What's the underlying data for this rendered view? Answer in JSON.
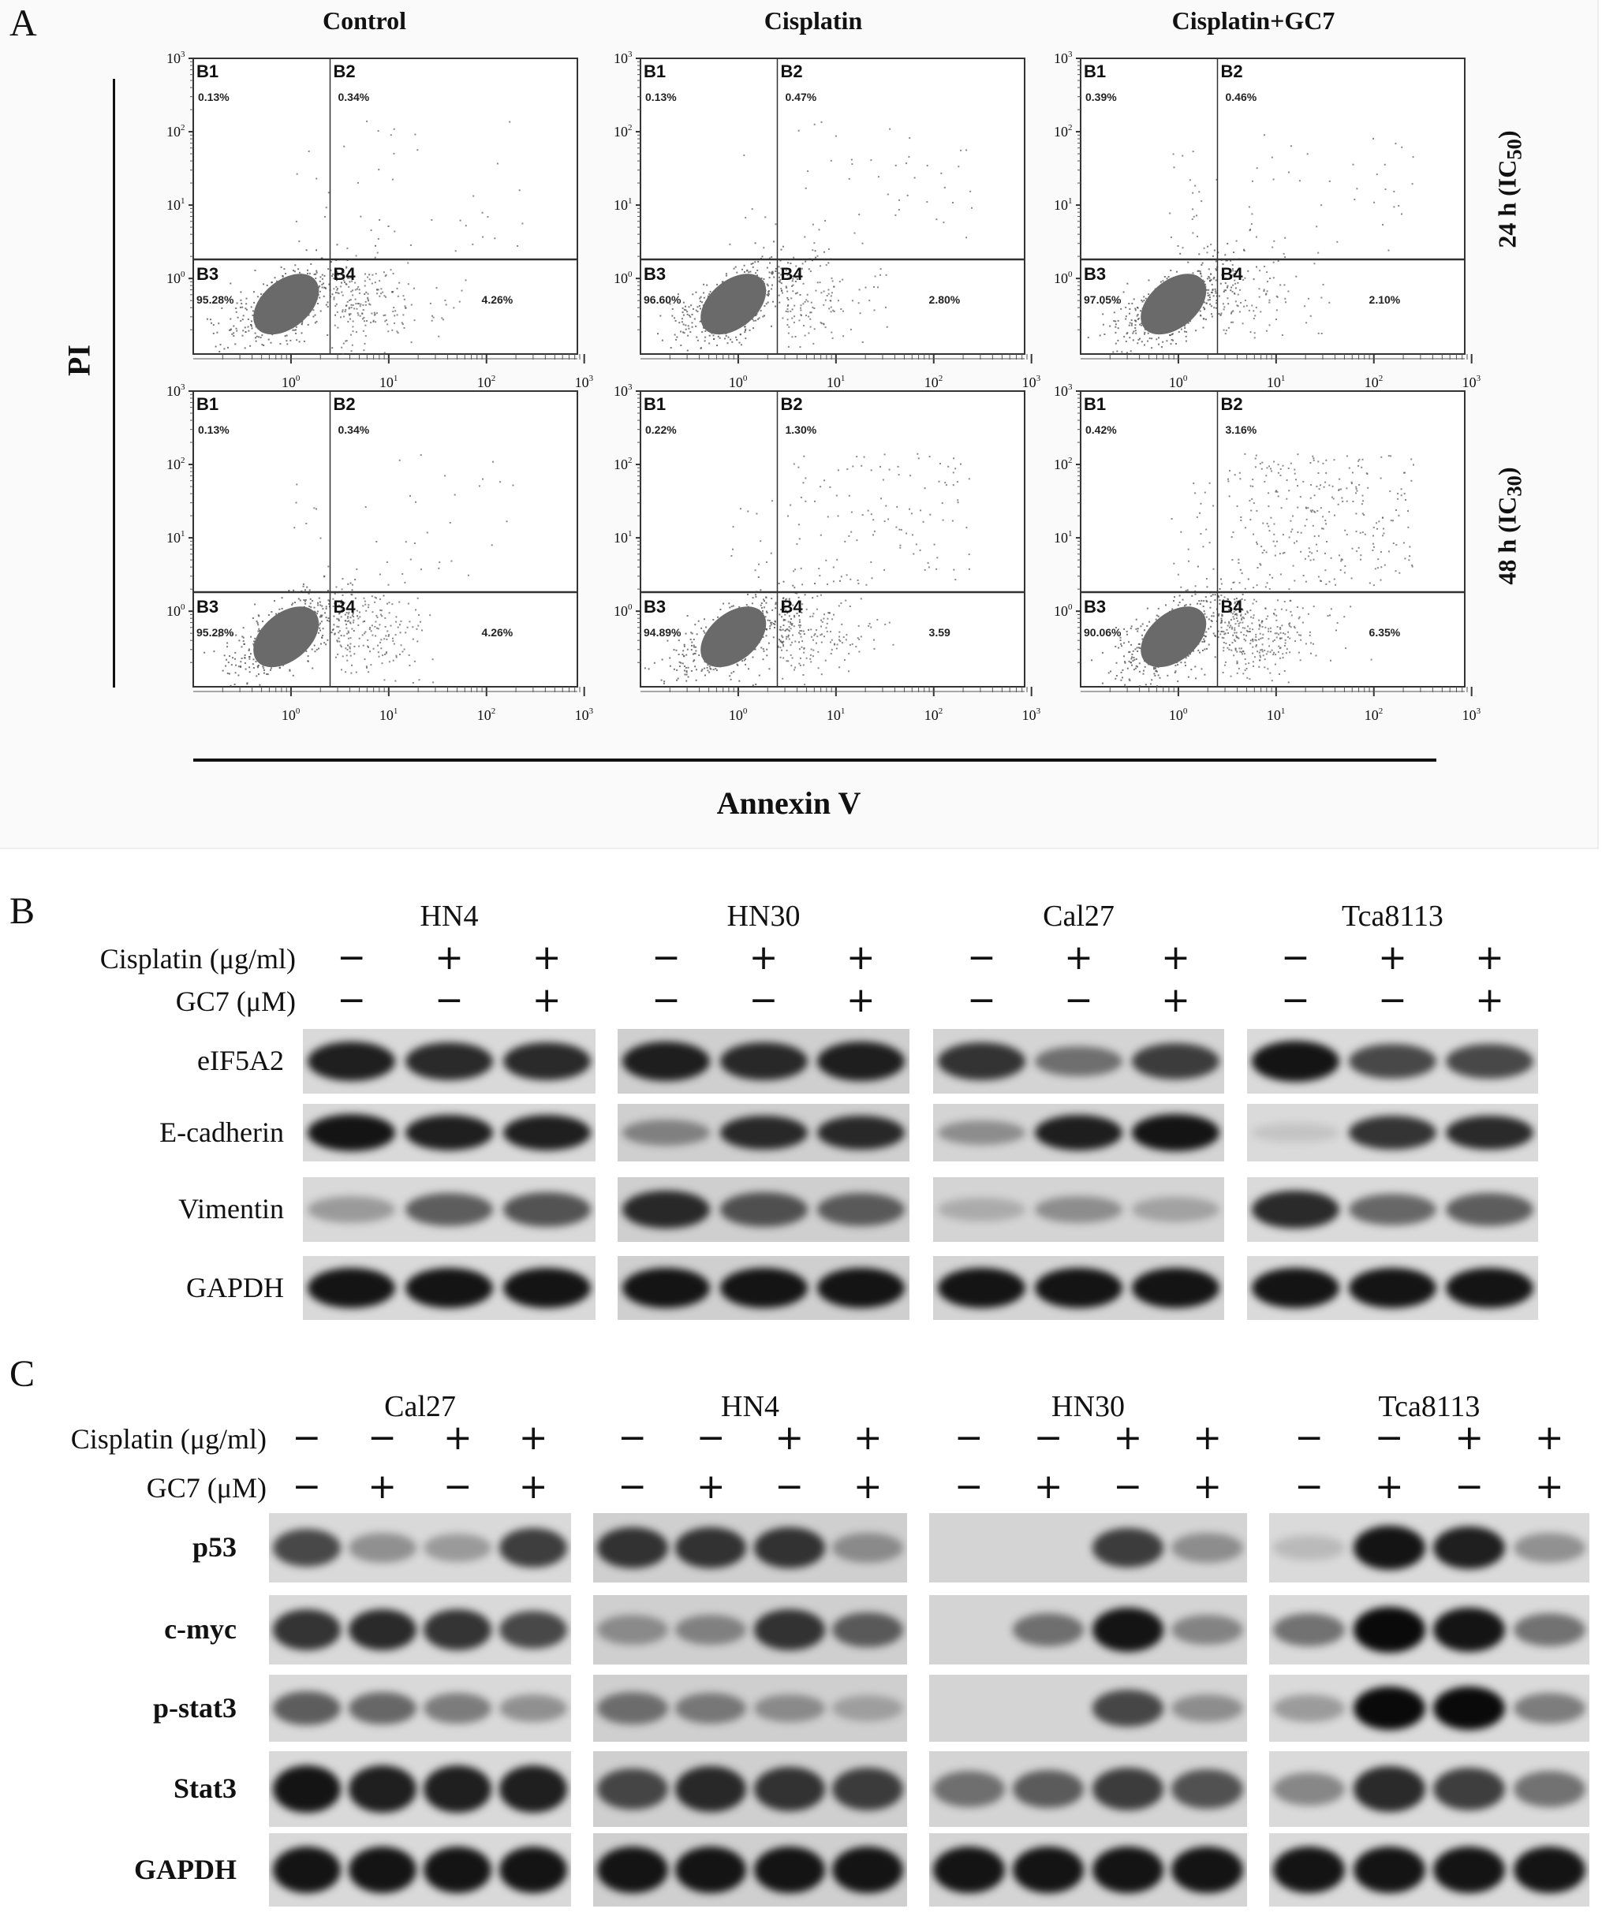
{
  "panel_a": {
    "letter": "A",
    "conditions": [
      "Control",
      "Cisplatin",
      "Cisplatin+GC7"
    ],
    "rows": [
      {
        "label": "24 h (IC",
        "sub": "50",
        "close": ")"
      },
      {
        "label": "48 h (IC",
        "sub": "30",
        "close": ")"
      }
    ],
    "y_axis_label": "PI",
    "x_axis_label": "Annexin V",
    "quadrant_names": [
      "B1",
      "B2",
      "B3",
      "B4"
    ],
    "tick_exponents": [
      "0",
      "1",
      "2",
      "3"
    ],
    "plots": [
      [
        {
          "B1": "0.13%",
          "B2": "0.34%",
          "B3": "95.28%",
          "B4": "4.26%"
        },
        {
          "B1": "0.13%",
          "B2": "0.47%",
          "B3": "96.60%",
          "B4": "2.80%"
        },
        {
          "B1": "0.39%",
          "B2": "0.46%",
          "B3": "97.05%",
          "B4": "2.10%"
        }
      ],
      [
        {
          "B1": "0.13%",
          "B2": "0.34%",
          "B3": "95.28%",
          "B4": "4.26%"
        },
        {
          "B1": "0.22%",
          "B2": "1.30%",
          "B3": "94.89%",
          "B4": "3.59"
        },
        {
          "B1": "0.42%",
          "B2": "3.16%",
          "B3": "90.06%",
          "B4": "6.35%"
        }
      ]
    ]
  },
  "panel_b": {
    "letter": "B",
    "cell_lines": [
      "HN4",
      "HN30",
      "Cal27",
      "Tca8113"
    ],
    "treatments": [
      {
        "label": "Cisplatin (μg/ml)",
        "signs": [
          "−",
          "+",
          "+"
        ]
      },
      {
        "label": "GC7 (μM)",
        "signs": [
          "−",
          "−",
          "+"
        ]
      }
    ],
    "proteins": [
      {
        "label": "eIF5A2",
        "intensity": [
          [
            0.9,
            0.85,
            0.85
          ],
          [
            0.9,
            0.85,
            0.9
          ],
          [
            0.8,
            0.5,
            0.75
          ],
          [
            0.95,
            0.7,
            0.7
          ]
        ]
      },
      {
        "label": "E-cadherin",
        "intensity": [
          [
            0.95,
            0.9,
            0.9
          ],
          [
            0.4,
            0.85,
            0.85
          ],
          [
            0.35,
            0.9,
            0.95
          ],
          [
            0.1,
            0.8,
            0.85
          ]
        ]
      },
      {
        "label": "Vimentin",
        "intensity": [
          [
            0.3,
            0.6,
            0.65
          ],
          [
            0.85,
            0.65,
            0.6
          ],
          [
            0.2,
            0.35,
            0.25
          ],
          [
            0.85,
            0.55,
            0.6
          ]
        ]
      },
      {
        "label": "GAPDH",
        "intensity": [
          [
            0.95,
            0.95,
            0.95
          ],
          [
            0.95,
            0.95,
            0.95
          ],
          [
            0.95,
            0.95,
            0.95
          ],
          [
            0.95,
            0.95,
            0.95
          ]
        ]
      }
    ]
  },
  "panel_c": {
    "letter": "C",
    "cell_lines": [
      "Cal27",
      "HN4",
      "HN30",
      "Tca8113"
    ],
    "treatments": [
      {
        "label": "Cisplatin (μg/ml)",
        "signs": [
          "−",
          "−",
          "+",
          "+"
        ]
      },
      {
        "label": "GC7 (μM)",
        "signs": [
          "−",
          "+",
          "−",
          "+"
        ]
      }
    ],
    "proteins": [
      {
        "label": "p53",
        "intensity": [
          [
            0.7,
            0.35,
            0.3,
            0.75
          ],
          [
            0.8,
            0.8,
            0.8,
            0.35
          ],
          [
            0,
            0,
            0.75,
            0.35
          ],
          [
            0.15,
            0.95,
            0.9,
            0.35
          ]
        ]
      },
      {
        "label": "c-myc",
        "intensity": [
          [
            0.8,
            0.85,
            0.8,
            0.7
          ],
          [
            0.35,
            0.4,
            0.8,
            0.6
          ],
          [
            0,
            0.5,
            0.95,
            0.4
          ],
          [
            0.5,
            1,
            0.95,
            0.5
          ]
        ]
      },
      {
        "label": "p-stat3",
        "intensity": [
          [
            0.6,
            0.55,
            0.45,
            0.35
          ],
          [
            0.5,
            0.45,
            0.35,
            0.25
          ],
          [
            0,
            0,
            0.7,
            0.35
          ],
          [
            0.3,
            1,
            1,
            0.45
          ]
        ]
      },
      {
        "label": "Stat3",
        "intensity": [
          [
            0.95,
            0.9,
            0.9,
            0.9
          ],
          [
            0.7,
            0.85,
            0.8,
            0.75
          ],
          [
            0.5,
            0.6,
            0.75,
            0.65
          ],
          [
            0.4,
            0.85,
            0.75,
            0.5
          ]
        ]
      },
      {
        "label": "GAPDH",
        "intensity": [
          [
            0.95,
            0.95,
            0.95,
            0.95
          ],
          [
            0.95,
            0.95,
            0.95,
            0.95
          ],
          [
            0.95,
            0.95,
            0.95,
            0.95
          ],
          [
            0.95,
            0.95,
            0.95,
            0.95
          ]
        ]
      }
    ]
  }
}
